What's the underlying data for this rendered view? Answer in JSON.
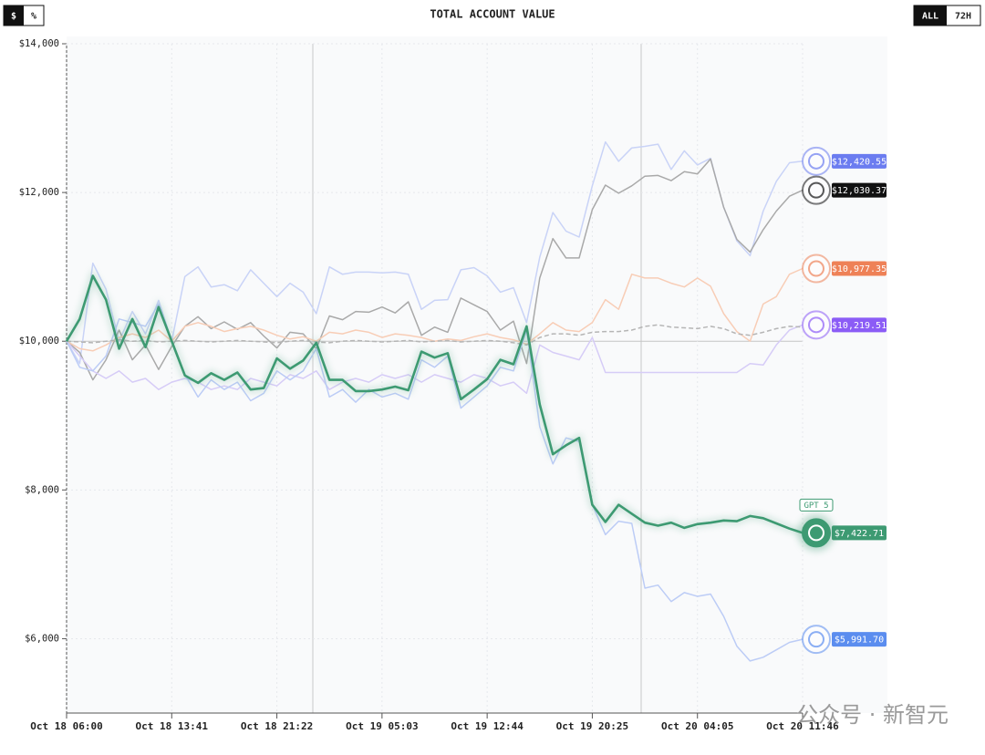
{
  "chart_data": {
    "type": "line",
    "title": "TOTAL ACCOUNT VALUE",
    "toggles": {
      "unit": [
        "$",
        "%"
      ],
      "range": [
        "ALL",
        "72H"
      ]
    },
    "watermark": "公众号 · 新智元",
    "categories": [
      "Oct 18 06:00",
      null,
      null,
      null,
      null,
      null,
      null,
      null,
      "Oct 18 13:41",
      null,
      null,
      null,
      null,
      null,
      null,
      null,
      "Oct 18 21:22",
      null,
      null,
      null,
      null,
      null,
      null,
      null,
      "Oct 19 05:03",
      null,
      null,
      null,
      null,
      null,
      null,
      null,
      "Oct 19 12:44",
      null,
      null,
      null,
      null,
      null,
      null,
      null,
      "Oct 19 20:25",
      null,
      null,
      null,
      null,
      null,
      null,
      null,
      "Oct 20 04:05",
      null,
      null,
      null,
      null,
      null,
      null,
      null,
      "Oct 20 11:46"
    ],
    "ylim": [
      5000,
      14000
    ],
    "yticks": [
      {
        "value": 6000,
        "label": "$6,000"
      },
      {
        "value": 8000,
        "label": "$8,000"
      },
      {
        "value": 10000,
        "label": "$10,000"
      },
      {
        "value": 12000,
        "label": "$12,000"
      },
      {
        "value": 14000,
        "label": "$14,000"
      }
    ],
    "baseline": 10000,
    "grid": true,
    "series": [
      {
        "color": "#c9d3f7",
        "label_color": "#6b7cf0",
        "width": 1.5,
        "values": [
          10000,
          9700,
          11050,
          10700,
          10000,
          10400,
          10100,
          10550,
          10000,
          10870,
          11000,
          10730,
          10760,
          10680,
          10960,
          10780,
          10600,
          10780,
          10660,
          10370,
          11000,
          10900,
          10930,
          10930,
          10920,
          10930,
          10900,
          10430,
          10550,
          10560,
          10960,
          10990,
          10880,
          10660,
          10720,
          10250,
          11130,
          11730,
          11480,
          11400,
          12090,
          12680,
          12420,
          12600,
          12620,
          12650,
          12310,
          12560,
          12370,
          12460,
          11800,
          11350,
          11150,
          11750,
          12150,
          12400,
          12420.55
        ],
        "value_labels": [
          null,
          null,
          null,
          null,
          null,
          null,
          null,
          null,
          null,
          null,
          null,
          null,
          null,
          null,
          null,
          null,
          null,
          null,
          null,
          null,
          null,
          null,
          null,
          null,
          null,
          null,
          null,
          null,
          null,
          null,
          null,
          null,
          null,
          null,
          null,
          null,
          null,
          null,
          null,
          null,
          null,
          null,
          null,
          null,
          null,
          null,
          null,
          null,
          null,
          null,
          null,
          null,
          null,
          null,
          null,
          null,
          "$12,420.55"
        ]
      },
      {
        "color": "#a9a9a9",
        "label_color": "#111111",
        "width": 1.5,
        "values": [
          10000,
          9850,
          9480,
          9750,
          10150,
          9750,
          9950,
          9620,
          9930,
          10200,
          10330,
          10170,
          10260,
          10160,
          10250,
          10070,
          9910,
          10120,
          10100,
          9900,
          10340,
          10290,
          10400,
          10390,
          10460,
          10380,
          10530,
          10080,
          10190,
          10120,
          10580,
          10490,
          10400,
          10150,
          10270,
          9700,
          10850,
          11380,
          11120,
          11120,
          11770,
          12100,
          11990,
          12090,
          12220,
          12230,
          12160,
          12280,
          12250,
          12450,
          11800,
          11370,
          11200,
          11500,
          11750,
          11950,
          12030.37
        ],
        "value_labels": [
          null,
          null,
          null,
          null,
          null,
          null,
          null,
          null,
          null,
          null,
          null,
          null,
          null,
          null,
          null,
          null,
          null,
          null,
          null,
          null,
          null,
          null,
          null,
          null,
          null,
          null,
          null,
          null,
          null,
          null,
          null,
          null,
          null,
          null,
          null,
          null,
          null,
          null,
          null,
          null,
          null,
          null,
          null,
          null,
          null,
          null,
          null,
          null,
          null,
          null,
          null,
          null,
          null,
          null,
          null,
          null,
          "$12,030.37"
        ]
      },
      {
        "color": "#f8cdb6",
        "label_color": "#ee8157",
        "width": 1.5,
        "values": [
          10000,
          9900,
          9870,
          9950,
          10050,
          10100,
          10050,
          10150,
          10000,
          10200,
          10250,
          10200,
          10130,
          10170,
          10200,
          10150,
          10080,
          10030,
          10060,
          10000,
          10120,
          10100,
          10150,
          10120,
          10050,
          10100,
          10080,
          10050,
          10000,
          10030,
          10010,
          10060,
          10100,
          10050,
          10020,
          9960,
          10100,
          10250,
          10150,
          10130,
          10250,
          10560,
          10430,
          10900,
          10850,
          10850,
          10780,
          10730,
          10850,
          10740,
          10370,
          10130,
          10000,
          10500,
          10600,
          10900,
          10977.35
        ],
        "value_labels": [
          null,
          null,
          null,
          null,
          null,
          null,
          null,
          null,
          null,
          null,
          null,
          null,
          null,
          null,
          null,
          null,
          null,
          null,
          null,
          null,
          null,
          null,
          null,
          null,
          null,
          null,
          null,
          null,
          null,
          null,
          null,
          null,
          null,
          null,
          null,
          null,
          null,
          null,
          null,
          null,
          null,
          null,
          null,
          null,
          null,
          null,
          null,
          null,
          null,
          null,
          null,
          null,
          null,
          null,
          null,
          null,
          "$10,977.35"
        ]
      },
      {
        "color": "#d6ccf7",
        "label_color": "#8b5cf6",
        "width": 1.5,
        "values": [
          10000,
          9800,
          9600,
          9500,
          9600,
          9450,
          9500,
          9350,
          9450,
          9500,
          9450,
          9350,
          9400,
          9350,
          9500,
          9450,
          9400,
          9550,
          9500,
          9600,
          9350,
          9450,
          9500,
          9450,
          9550,
          9500,
          9550,
          9450,
          9550,
          9500,
          9450,
          9550,
          9500,
          9400,
          9450,
          9300,
          9950,
          9850,
          9800,
          9750,
          10050,
          9580,
          9580,
          9580,
          9580,
          9580,
          9580,
          9580,
          9580,
          9580,
          9580,
          9580,
          9700,
          9680,
          9950,
          10150,
          10219.51
        ],
        "value_labels": [
          null,
          null,
          null,
          null,
          null,
          null,
          null,
          null,
          null,
          null,
          null,
          null,
          null,
          null,
          null,
          null,
          null,
          null,
          null,
          null,
          null,
          null,
          null,
          null,
          null,
          null,
          null,
          null,
          null,
          null,
          null,
          null,
          null,
          null,
          null,
          null,
          null,
          null,
          null,
          null,
          null,
          null,
          null,
          null,
          null,
          null,
          null,
          null,
          null,
          null,
          null,
          null,
          null,
          null,
          null,
          null,
          "$10,219.51"
        ]
      },
      {
        "color": "#bcccf6",
        "label_color": "#5b8def",
        "width": 1.5,
        "values": [
          10000,
          9650,
          9600,
          9800,
          10300,
          10250,
          10200,
          10500,
          10000,
          9550,
          9250,
          9480,
          9350,
          9450,
          9200,
          9300,
          9600,
          9480,
          9600,
          9900,
          9250,
          9350,
          9180,
          9350,
          9250,
          9300,
          9220,
          9750,
          9650,
          9800,
          9100,
          9250,
          9400,
          9650,
          9600,
          10150,
          8850,
          8350,
          8700,
          8650,
          7800,
          7400,
          7580,
          7550,
          6680,
          6720,
          6500,
          6620,
          6570,
          6600,
          6300,
          5900,
          5700,
          5750,
          5850,
          5950,
          5991.7
        ],
        "value_labels": [
          null,
          null,
          null,
          null,
          null,
          null,
          null,
          null,
          null,
          null,
          null,
          null,
          null,
          null,
          null,
          null,
          null,
          null,
          null,
          null,
          null,
          null,
          null,
          null,
          null,
          null,
          null,
          null,
          null,
          null,
          null,
          null,
          null,
          null,
          null,
          null,
          null,
          null,
          null,
          null,
          null,
          null,
          null,
          null,
          null,
          null,
          null,
          null,
          null,
          null,
          null,
          null,
          null,
          null,
          null,
          null,
          "$5,991.70"
        ]
      },
      {
        "color": "#b5b5b5",
        "dashed": true,
        "width": 1.5,
        "values": [
          10000,
          9990,
          9980,
          10000,
          10020,
          10000,
          10010,
          9990,
          10000,
          10010,
          10000,
          9990,
          10000,
          10010,
          10000,
          9990,
          9980,
          10000,
          10010,
          9990,
          9980,
          10000,
          10010,
          10000,
          9990,
          10000,
          10010,
          9990,
          10000,
          10010,
          9990,
          10000,
          10010,
          10000,
          9980,
          9950,
          10050,
          10100,
          10100,
          10080,
          10120,
          10130,
          10130,
          10150,
          10200,
          10220,
          10190,
          10180,
          10170,
          10200,
          10170,
          10100,
          10080,
          10120,
          10170,
          10200,
          10190
        ]
      },
      {
        "name": "GPT 5",
        "color": "#3d9a72",
        "label_color": "#3d9a72",
        "width": 2.6,
        "highlight": true,
        "values": [
          10000,
          10300,
          10880,
          10560,
          9900,
          10300,
          9920,
          10460,
          10000,
          9540,
          9440,
          9570,
          9480,
          9580,
          9350,
          9370,
          9770,
          9630,
          9740,
          9980,
          9480,
          9480,
          9330,
          9330,
          9350,
          9390,
          9340,
          9860,
          9780,
          9840,
          9220,
          9350,
          9490,
          9750,
          9690,
          10200,
          9150,
          8480,
          8600,
          8700,
          7800,
          7570,
          7800,
          7680,
          7560,
          7520,
          7560,
          7490,
          7540,
          7560,
          7590,
          7580,
          7650,
          7620,
          7550,
          7480,
          7422.71
        ],
        "value_labels": [
          null,
          null,
          null,
          null,
          null,
          null,
          null,
          null,
          null,
          null,
          null,
          null,
          null,
          null,
          null,
          null,
          null,
          null,
          null,
          null,
          null,
          null,
          null,
          null,
          null,
          null,
          null,
          null,
          null,
          null,
          null,
          null,
          null,
          null,
          null,
          null,
          null,
          null,
          null,
          null,
          null,
          null,
          null,
          null,
          null,
          null,
          null,
          null,
          null,
          null,
          null,
          null,
          null,
          null,
          null,
          null,
          "$7,422.71"
        ]
      }
    ]
  }
}
